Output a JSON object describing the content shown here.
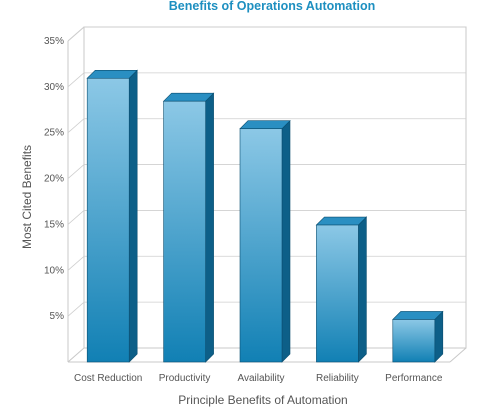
{
  "chart_data": {
    "type": "bar",
    "title": "Benefits of Operations Automation",
    "xlabel": "Principle Benefits of Automation",
    "ylabel": "Most Cited Benefits",
    "categories": [
      "Cost Reduction",
      "Productivity",
      "Availability",
      "Reliability",
      "Performance"
    ],
    "values": [
      30.5,
      28,
      25,
      14.5,
      4.2
    ],
    "unit": "%",
    "ylim": [
      0,
      35
    ],
    "yticks": [
      {
        "value": 5,
        "label": "5%"
      },
      {
        "value": 10,
        "label": "10%"
      },
      {
        "value": 15,
        "label": "15%"
      },
      {
        "value": 20,
        "label": "20%"
      },
      {
        "value": 25,
        "label": "25%"
      },
      {
        "value": 30,
        "label": "30%"
      },
      {
        "value": 35,
        "label": "35%"
      }
    ],
    "grid": true,
    "legend": "none",
    "colors": {
      "bar_front_top": "#8cc8e6",
      "bar_front_bottom": "#1180b4",
      "bar_top": "#2a8fc2",
      "bar_side": "#0d5f88",
      "title": "#1d8fc0"
    }
  }
}
